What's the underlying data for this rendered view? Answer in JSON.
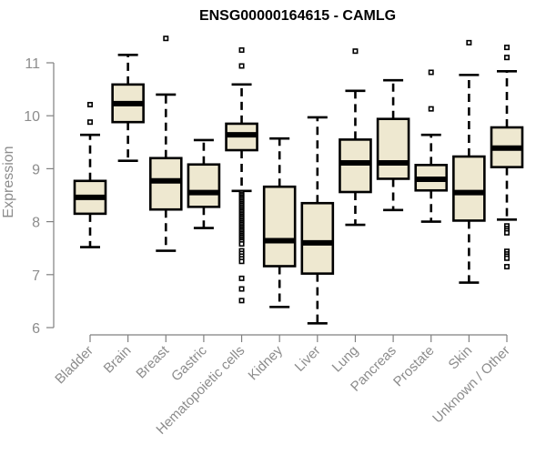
{
  "chart_data": {
    "type": "boxplot",
    "title": "ENSG00000164615 - CAMLG",
    "xlabel": "",
    "ylabel": "Expression",
    "ylim": [
      6,
      11
    ],
    "yticks": [
      6,
      7,
      8,
      9,
      10,
      11
    ],
    "grid": false,
    "legend": "none",
    "box_fill": "#EEE8D0",
    "categories": [
      "Bladder",
      "Brain",
      "Breast",
      "Gastric",
      "Hematopoietic cells",
      "Kidney",
      "Liver",
      "Lung",
      "Pancreas",
      "Prostate",
      "Skin",
      "Unknown / Other"
    ],
    "boxes": [
      {
        "name": "Bladder",
        "whisker_low": 7.52,
        "q1": 8.15,
        "median": 8.46,
        "q3": 8.77,
        "whisker_high": 9.64,
        "outliers": [
          9.88,
          10.21
        ]
      },
      {
        "name": "Brain",
        "whisker_low": 9.15,
        "q1": 9.88,
        "median": 10.23,
        "q3": 10.59,
        "whisker_high": 11.15,
        "outliers": []
      },
      {
        "name": "Breast",
        "whisker_low": 7.45,
        "q1": 8.23,
        "median": 8.77,
        "q3": 9.2,
        "whisker_high": 10.4,
        "outliers": [
          11.46
        ]
      },
      {
        "name": "Gastric",
        "whisker_low": 7.88,
        "q1": 8.28,
        "median": 8.55,
        "q3": 9.08,
        "whisker_high": 9.54,
        "outliers": []
      },
      {
        "name": "Hematopoietic cells",
        "whisker_low": 8.58,
        "q1": 9.35,
        "median": 9.64,
        "q3": 9.85,
        "whisker_high": 10.59,
        "outliers": [
          11.24,
          10.94,
          8.55,
          8.52,
          8.49,
          8.46,
          8.43,
          8.4,
          8.37,
          8.34,
          8.31,
          8.28,
          8.25,
          8.22,
          8.19,
          8.16,
          8.13,
          8.1,
          8.07,
          8.04,
          8.01,
          7.98,
          7.95,
          7.92,
          7.89,
          7.86,
          7.83,
          7.8,
          7.77,
          7.74,
          7.71,
          7.68,
          7.65,
          7.62,
          7.58,
          7.45,
          7.4,
          7.35,
          7.3,
          7.25,
          6.93,
          6.73,
          6.51
        ]
      },
      {
        "name": "Kidney",
        "whisker_low": 6.39,
        "q1": 7.16,
        "median": 7.64,
        "q3": 8.66,
        "whisker_high": 9.57,
        "outliers": []
      },
      {
        "name": "Liver",
        "whisker_low": 6.08,
        "q1": 7.02,
        "median": 7.6,
        "q3": 8.35,
        "whisker_high": 9.97,
        "outliers": []
      },
      {
        "name": "Lung",
        "whisker_low": 7.94,
        "q1": 8.56,
        "median": 9.11,
        "q3": 9.55,
        "whisker_high": 10.47,
        "outliers": [
          11.22
        ]
      },
      {
        "name": "Pancreas",
        "whisker_low": 8.22,
        "q1": 8.81,
        "median": 9.11,
        "q3": 9.94,
        "whisker_high": 10.67,
        "outliers": []
      },
      {
        "name": "Prostate",
        "whisker_low": 8.0,
        "q1": 8.59,
        "median": 8.8,
        "q3": 9.07,
        "whisker_high": 9.64,
        "outliers": [
          10.13,
          10.82
        ]
      },
      {
        "name": "Skin",
        "whisker_low": 6.85,
        "q1": 8.02,
        "median": 8.55,
        "q3": 9.23,
        "whisker_high": 10.77,
        "outliers": [
          11.38
        ]
      },
      {
        "name": "Unknown / Other",
        "whisker_low": 8.04,
        "q1": 9.03,
        "median": 9.39,
        "q3": 9.78,
        "whisker_high": 10.84,
        "outliers": [
          11.29,
          11.1,
          7.92,
          7.87,
          7.83,
          7.79,
          7.44,
          7.39,
          7.35,
          7.31,
          7.15
        ]
      }
    ]
  }
}
